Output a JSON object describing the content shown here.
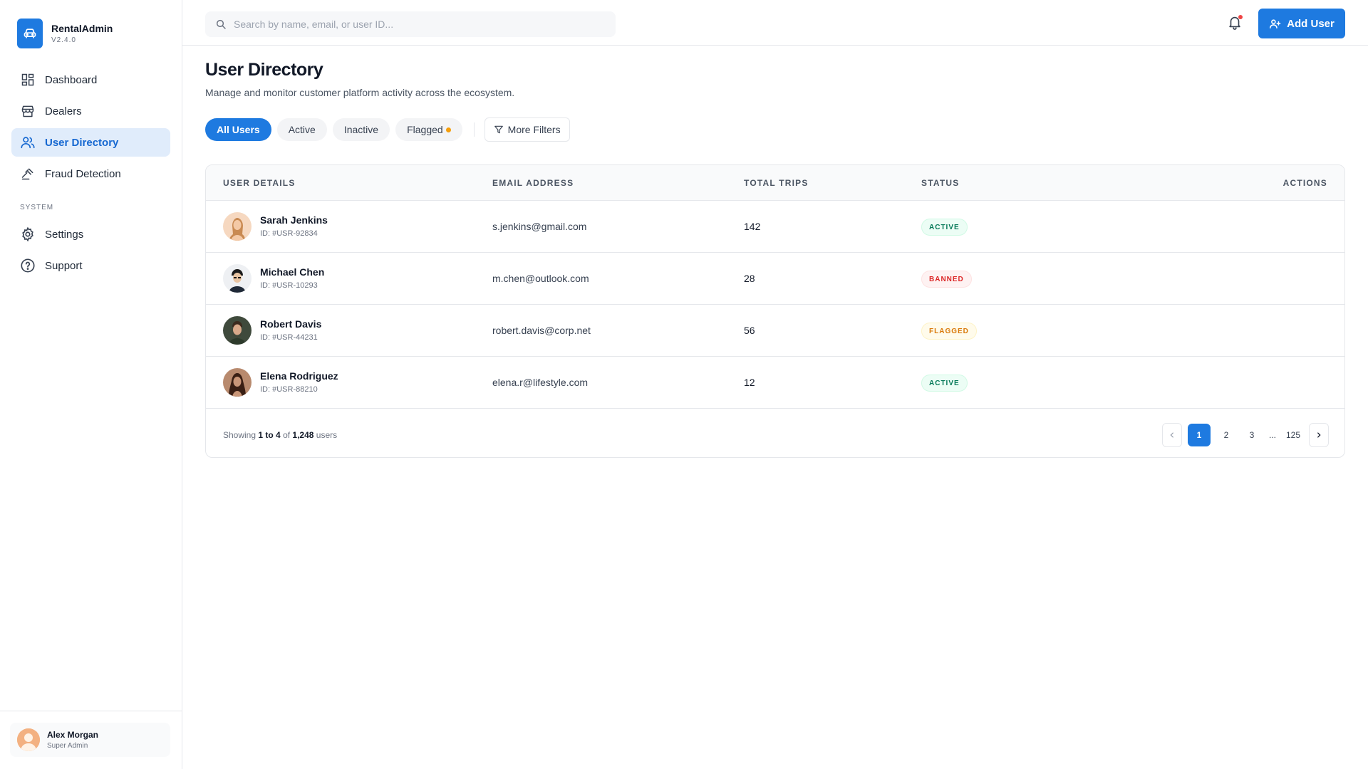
{
  "brand": {
    "name": "RentalAdmin",
    "version": "V2.4.0",
    "logo_icon": "car-icon",
    "accent": "#1e7ae0"
  },
  "sidebar": {
    "items": [
      {
        "label": "Dashboard",
        "icon": "dashboard-icon"
      },
      {
        "label": "Dealers",
        "icon": "store-icon"
      },
      {
        "label": "User Directory",
        "icon": "users-icon",
        "active": true
      },
      {
        "label": "Fraud Detection",
        "icon": "gavel-icon"
      }
    ],
    "system_label": "SYSTEM",
    "system_items": [
      {
        "label": "Settings",
        "icon": "gear-icon"
      },
      {
        "label": "Support",
        "icon": "help-circle-icon"
      }
    ],
    "profile": {
      "name": "Alex Morgan",
      "role": "Super Admin"
    }
  },
  "header": {
    "search_placeholder": "Search by name, email, or user ID...",
    "add_user_label": "Add User"
  },
  "main": {
    "title": "User Directory",
    "subtitle": "Manage and monitor customer platform activity across the ecosystem.",
    "filters": [
      "All Users",
      "Active",
      "Inactive",
      "Flagged"
    ],
    "more_filters_label": "More Filters"
  },
  "table": {
    "columns": [
      "USER DETAILS",
      "EMAIL ADDRESS",
      "TOTAL TRIPS",
      "STATUS",
      "ACTIONS"
    ],
    "rows": [
      {
        "name": "Sarah Jenkins",
        "id": "ID: #USR-92834",
        "email": "s.jenkins@gmail.com",
        "trips": "142",
        "status": "ACTIVE"
      },
      {
        "name": "Michael Chen",
        "id": "ID: #USR-10293",
        "email": "m.chen@outlook.com",
        "trips": "28",
        "status": "BANNED"
      },
      {
        "name": "Robert Davis",
        "id": "ID: #USR-44231",
        "email": "robert.davis@corp.net",
        "trips": "56",
        "status": "FLAGGED"
      },
      {
        "name": "Elena Rodriguez",
        "id": "ID: #USR-88210",
        "email": "elena.r@lifestyle.com",
        "trips": "12",
        "status": "ACTIVE"
      }
    ]
  },
  "footer": {
    "showing_prefix": "Showing",
    "range": "1 to 4",
    "of_word": "of",
    "total": "1,248",
    "unit": "users",
    "pages": [
      "1",
      "2",
      "3",
      "...",
      "125"
    ]
  }
}
